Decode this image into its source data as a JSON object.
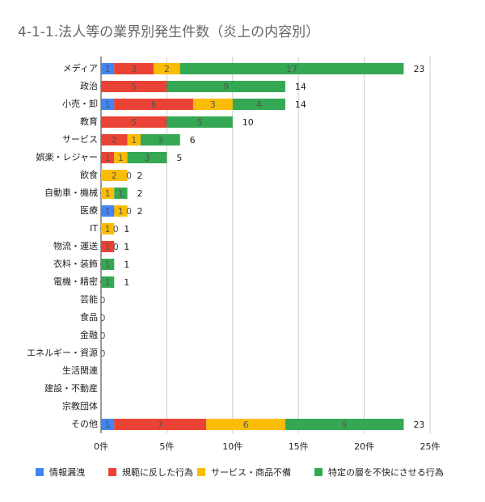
{
  "chart_data": {
    "type": "stacked-bar-horizontal",
    "title": "4-1-1.法人等の業界別発生件数（炎上の内容別）",
    "categories": [
      "メディア",
      "政治",
      "小売・卸",
      "教育",
      "サービス",
      "娯楽・レジャー",
      "飲食",
      "自動車・機械",
      "医療",
      "IT",
      "物流・運送",
      "衣料・装飾",
      "電機・精密",
      "芸能",
      "食品",
      "金融",
      "エネルギー・資源",
      "生活関連",
      "建設・不動産",
      "宗教団体",
      "その他"
    ],
    "series": [
      {
        "name": "情報漏洩",
        "color": "#4285f4",
        "values": [
          1,
          0,
          1,
          0,
          0,
          0,
          0,
          0,
          1,
          0,
          0,
          0,
          0,
          null,
          null,
          null,
          0,
          null,
          null,
          null,
          1
        ]
      },
      {
        "name": "規範に反した行為",
        "color": "#ea4335",
        "values": [
          3,
          5,
          6,
          5,
          2,
          1,
          0,
          0,
          0,
          0,
          1,
          0,
          0,
          null,
          null,
          null,
          null,
          null,
          null,
          null,
          7
        ]
      },
      {
        "name": "サービス・商品不備",
        "color": "#fbbc04",
        "values": [
          2,
          0,
          3,
          0,
          1,
          1,
          2,
          1,
          1,
          1,
          0,
          0,
          0,
          0,
          0,
          0,
          null,
          null,
          null,
          null,
          6
        ]
      },
      {
        "name": "特定の層を不快にさせる行為",
        "color": "#34a853",
        "values": [
          17,
          9,
          4,
          5,
          3,
          3,
          0,
          1,
          0,
          0,
          0,
          1,
          1,
          null,
          null,
          null,
          null,
          null,
          null,
          null,
          9
        ]
      }
    ],
    "totals": [
      23,
      14,
      14,
      10,
      6,
      5,
      2,
      2,
      2,
      1,
      1,
      1,
      1,
      null,
      null,
      null,
      null,
      null,
      null,
      null,
      23
    ],
    "xlim": [
      0,
      25
    ],
    "xticks": [
      {
        "value": 0,
        "label": "0件"
      },
      {
        "value": 5,
        "label": "5件"
      },
      {
        "value": 10,
        "label": "10件"
      },
      {
        "value": 15,
        "label": "15件"
      },
      {
        "value": 20,
        "label": "20件"
      },
      {
        "value": 25,
        "label": "25件"
      }
    ],
    "grid": true,
    "legend": "bottom"
  }
}
